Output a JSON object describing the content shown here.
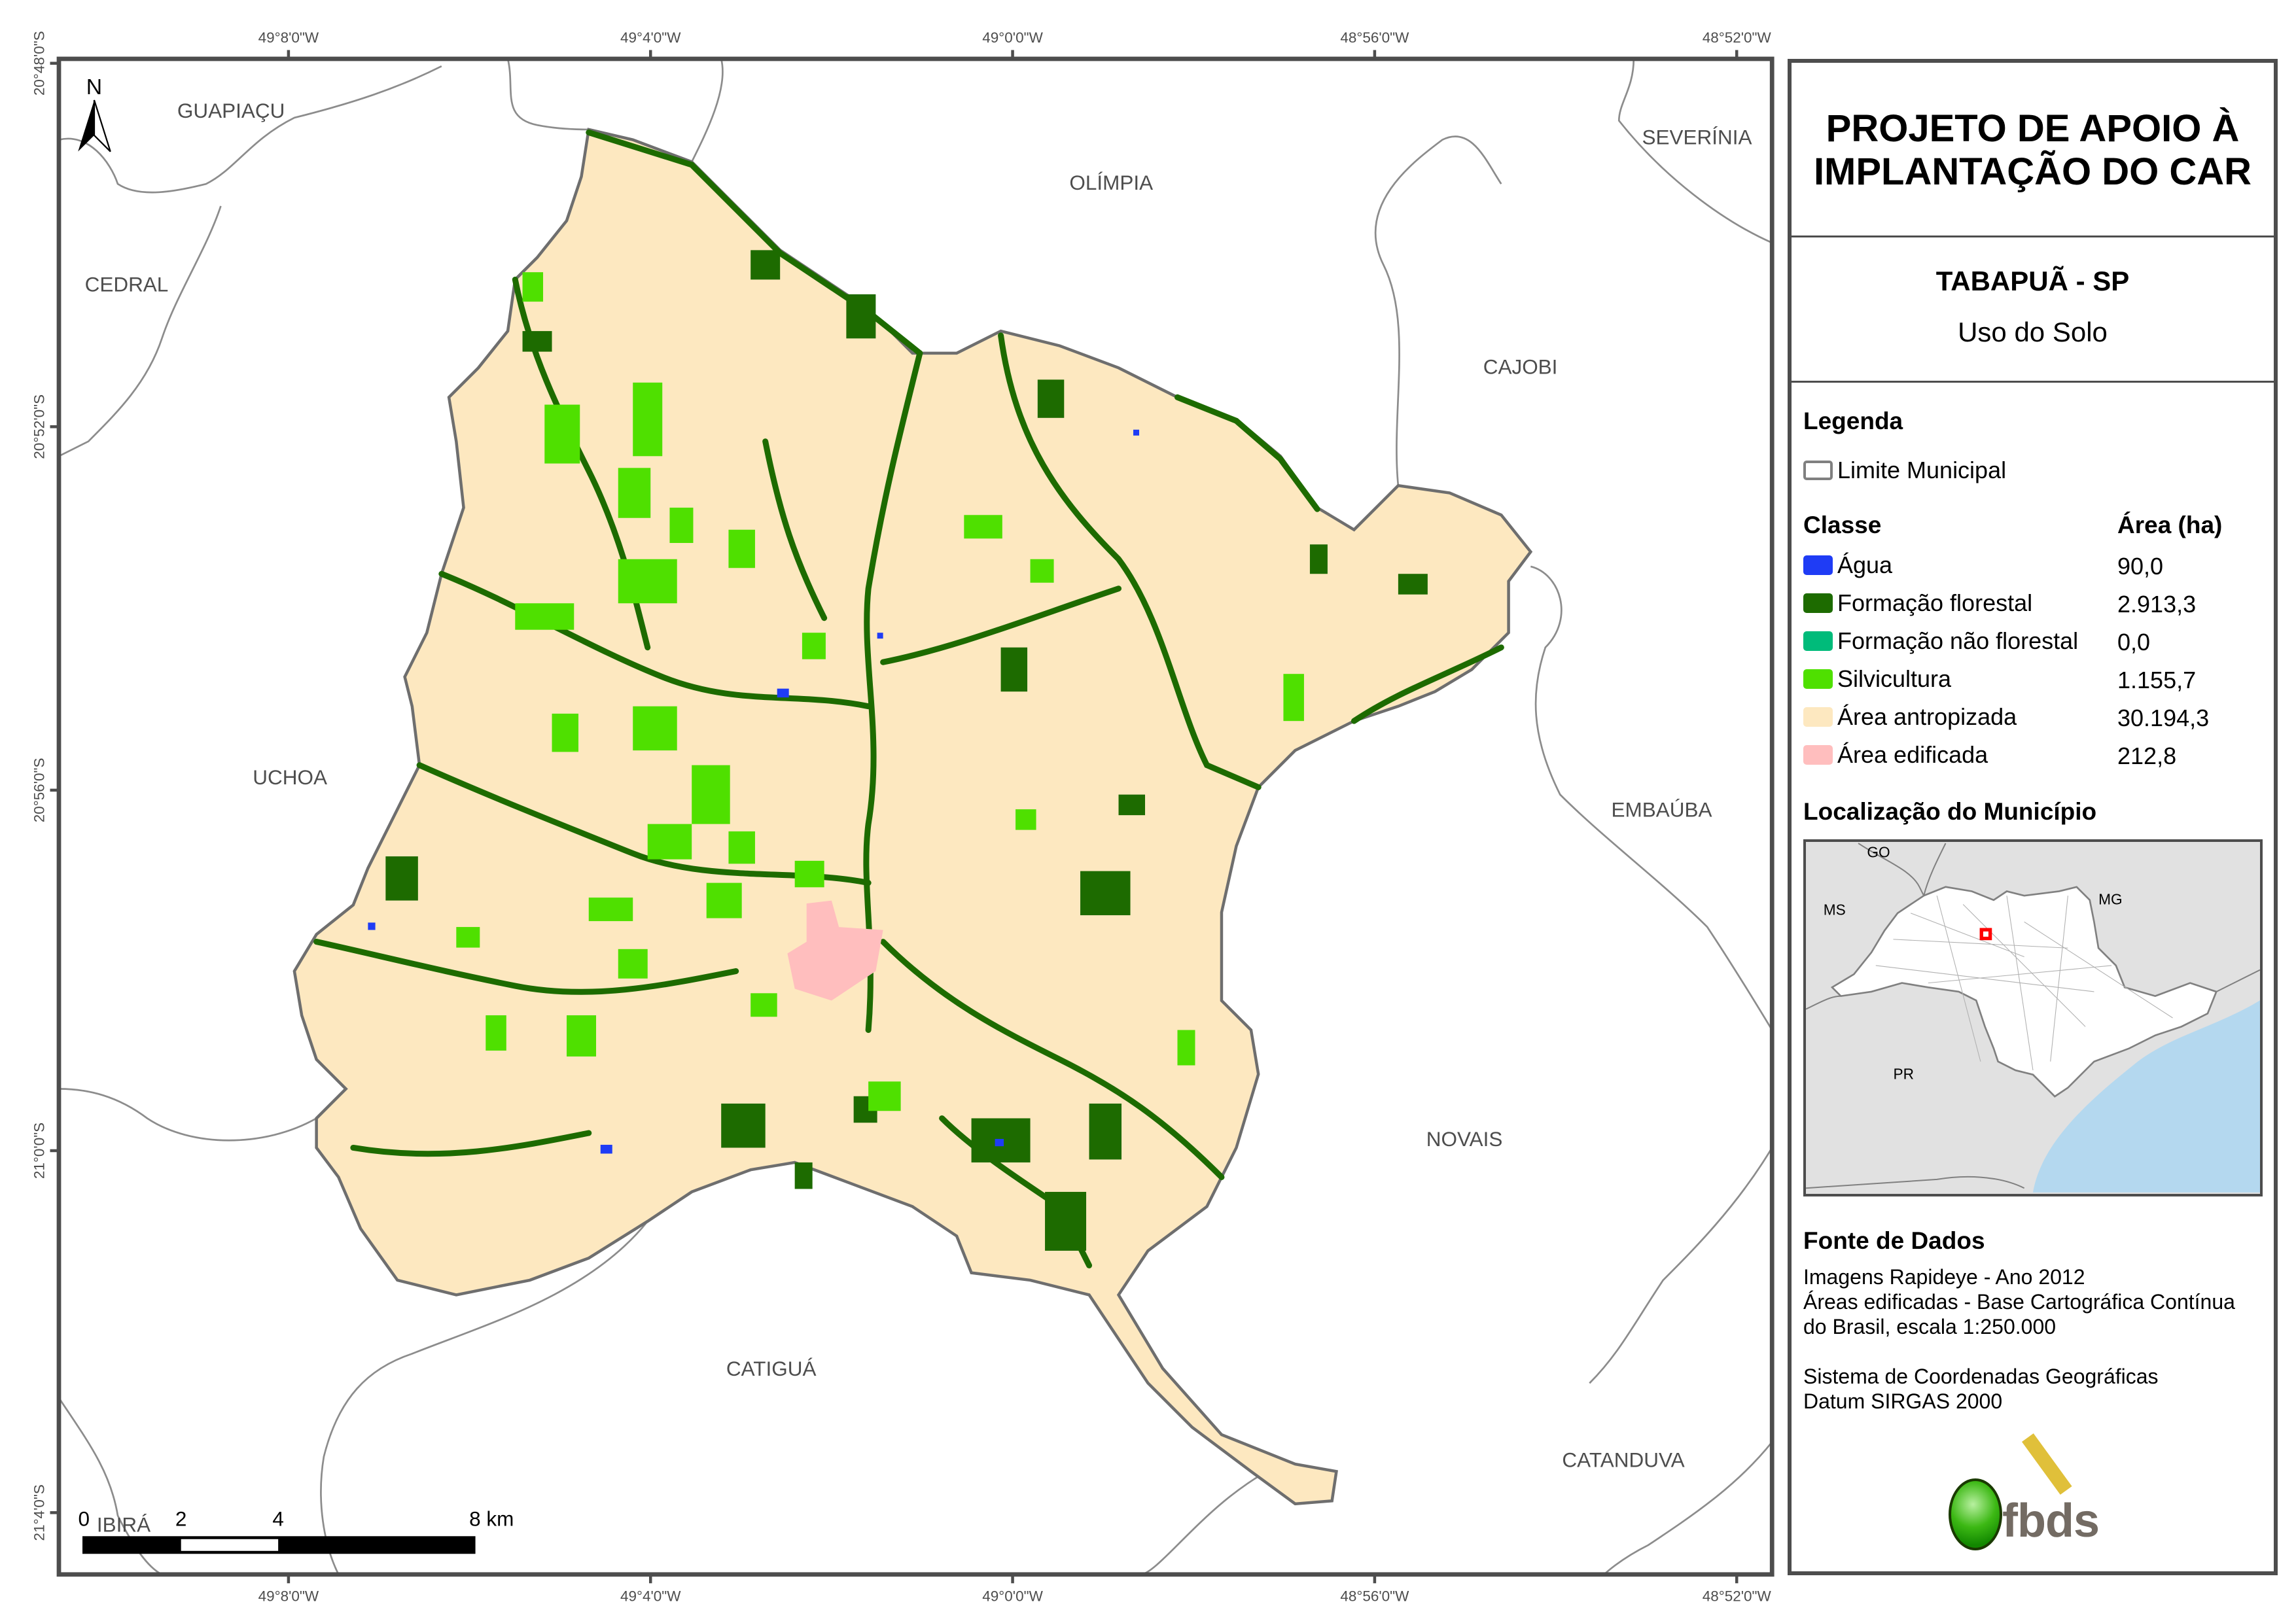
{
  "header": {
    "title_line1": "PROJETO DE APOIO À",
    "title_line2": "IMPLANTAÇÃO DO CAR",
    "municipality": "TABAPUÃ - SP",
    "subtitle": "Uso do Solo"
  },
  "legend": {
    "title": "Legenda",
    "boundary_label": "Limite Municipal",
    "class_header": "Classe",
    "area_header": "Área (ha)",
    "rows": [
      {
        "label": "Água",
        "value": "90,0",
        "color": "#1f3cf5"
      },
      {
        "label": "Formação florestal",
        "value": "2.913,3",
        "color": "#1d6b00"
      },
      {
        "label": "Formação não florestal",
        "value": "0,0",
        "color": "#00bb7a"
      },
      {
        "label": "Silvicultura",
        "value": "1.155,7",
        "color": "#4fe000"
      },
      {
        "label": "Área antropizada",
        "value": "30.194,3",
        "color": "#fde8c0"
      },
      {
        "label": "Área edificada",
        "value": "212,8",
        "color": "#ffbebe"
      }
    ]
  },
  "location": {
    "title": "Localização do Município",
    "labels": {
      "go": "GO",
      "ms": "MS",
      "mg": "MG",
      "pr": "PR"
    },
    "highlight_color": "#ff0000",
    "ocean_color": "#b4d8ef"
  },
  "sources": {
    "title": "Fonte de Dados",
    "line1": "Imagens Rapideye - Ano 2012",
    "line2": "Áreas edificadas - Base Cartográfica Contínua",
    "line3": "do Brasil, escala 1:250.000",
    "line4": "Sistema de Coordenadas Geográficas",
    "line5": "Datum SIRGAS 2000"
  },
  "logo": {
    "text": "fbds"
  },
  "map": {
    "north_label": "N",
    "top_ticks": [
      "49°8'0\"W",
      "49°4'0\"W",
      "49°0'0\"W",
      "48°56'0\"W",
      "48°52'0\"W"
    ],
    "bottom_ticks": [
      "49°8'0\"W",
      "49°4'0\"W",
      "49°0'0\"W",
      "48°56'0\"W",
      "48°52'0\"W"
    ],
    "left_ticks": [
      "20°48'0\"S",
      "20°52'0\"S",
      "20°56'0\"S",
      "21°0'0\"S",
      "21°4'0\"S"
    ],
    "neighbors": {
      "guapiacu": "GUAPIAÇU",
      "olimpia": "OLÍMPIA",
      "severinia": "SEVERÍNIA",
      "cedral": "CEDRAL",
      "cajobi": "CAJOBI",
      "uchoa": "UCHOA",
      "embauba": "EMBAÚBA",
      "novais": "NOVAIS",
      "catigua": "CATIGUÁ",
      "catanduva": "CATANDUVA",
      "ibira": "IBIRÁ"
    },
    "scale": {
      "l0": "0",
      "l2": "2",
      "l4": "4",
      "l8": "8 km"
    }
  }
}
